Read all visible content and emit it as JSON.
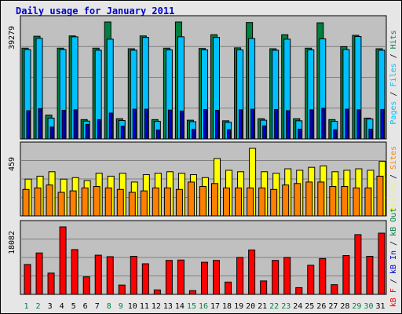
{
  "chart_data": {
    "title": "Daily usage for January 2011",
    "days": [
      "1",
      "2",
      "3",
      "4",
      "5",
      "6",
      "7",
      "8",
      "9",
      "10",
      "11",
      "12",
      "13",
      "14",
      "15",
      "16",
      "17",
      "18",
      "19",
      "20",
      "21",
      "22",
      "23",
      "24",
      "25",
      "26",
      "27",
      "28",
      "29",
      "30",
      "31"
    ],
    "weekend_days": [
      "1",
      "2",
      "8",
      "9",
      "15",
      "16",
      "22",
      "23",
      "29",
      "30"
    ],
    "colors": {
      "hits": "#008040",
      "files": "#00c0ff",
      "pages": "#00ffff",
      "pages_dark": "#0000cc",
      "visits": "#ffff00",
      "sites": "#ff8000",
      "kbytes": "#ff0000",
      "weekday_label": "#0000cc",
      "weekend_label": "#008040",
      "title": "#0000cc"
    },
    "charts": [
      {
        "type": "bar",
        "ymax_label": "39279",
        "ylim": [
          0,
          39279
        ],
        "legend_parts": [
          {
            "text": "Pages",
            "color": "#00c0ff"
          },
          {
            "text": " / ",
            "color": "#000000"
          },
          {
            "text": "Files",
            "color": "#00c0ff"
          },
          {
            "text": " / ",
            "color": "#000000"
          },
          {
            "text": "Hits",
            "color": "#008040"
          }
        ],
        "series": [
          {
            "name": "Hits",
            "values": [
              30500,
              34500,
              8000,
              30500,
              34600,
              6500,
              30500,
              39279,
              6800,
              30300,
              34600,
              6500,
              30500,
              39279,
              6300,
              30400,
              35000,
              6100,
              30600,
              39100,
              6800,
              30300,
              35000,
              6800,
              30500,
              39000,
              6500,
              31000,
              34800,
              7000,
              30300
            ]
          },
          {
            "name": "Files",
            "values": [
              30000,
              33800,
              7000,
              30000,
              34300,
              6000,
              29800,
              33500,
              6200,
              29800,
              34100,
              5900,
              29900,
              34300,
              5800,
              29900,
              34100,
              5600,
              29900,
              33700,
              6300,
              29800,
              33500,
              6100,
              29900,
              33600,
              5900,
              30000,
              34400,
              6700,
              29800
            ]
          },
          {
            "name": "Pages",
            "values": [
              9500,
              10200,
              4000,
              9600,
              9800,
              4900,
              6500,
              8700,
              4300,
              10000,
              10000,
              3000,
              9700,
              9400,
              3200,
              9900,
              9600,
              3100,
              9800,
              10000,
              4400,
              9900,
              9500,
              3300,
              9800,
              10300,
              3100,
              10000,
              9800,
              3300,
              9900
            ]
          }
        ]
      },
      {
        "type": "bar",
        "ymax_label": "459",
        "ylim": [
          0,
          459
        ],
        "legend_parts": [
          {
            "text": "Visits",
            "color": "#ffff00"
          },
          {
            "text": " / ",
            "color": "#000000"
          },
          {
            "text": "Sites",
            "color": "#ff8000"
          }
        ],
        "series": [
          {
            "name": "Visits",
            "values": [
              250,
              270,
              300,
              250,
              260,
              240,
              290,
              270,
              290,
              230,
              280,
              290,
              300,
              290,
              280,
              260,
              390,
              310,
              300,
              459,
              300,
              290,
              320,
              310,
              330,
              340,
              300,
              310,
              320,
              310,
              370
            ]
          },
          {
            "name": "Sites",
            "values": [
              180,
              190,
              210,
              160,
              170,
              190,
              200,
              190,
              180,
              160,
              170,
              190,
              190,
              180,
              230,
              200,
              220,
              190,
              190,
              190,
              190,
              180,
              210,
              220,
              230,
              230,
              200,
              200,
              190,
              190,
              270
            ]
          }
        ]
      },
      {
        "type": "bar",
        "ymax_label": "18082",
        "ylim": [
          0,
          18082
        ],
        "legend_parts": [
          {
            "text": "kB F",
            "color": "#ff0000"
          },
          {
            "text": " / ",
            "color": "#000000"
          },
          {
            "text": "kB In",
            "color": "#0000cc"
          },
          {
            "text": " / ",
            "color": "#000000"
          },
          {
            "text": "kB Out",
            "color": "#008040"
          }
        ],
        "series": [
          {
            "name": "kB F",
            "values": [
              8000,
              11100,
              5700,
              18082,
              12000,
              4700,
              10500,
              10100,
              2500,
              10200,
              8200,
              1200,
              9100,
              9200,
              1000,
              8600,
              9100,
              3300,
              9900,
              11900,
              3600,
              9100,
              9900,
              1800,
              7800,
              9600,
              2600,
              10400,
              16000,
              10200,
              16400
            ]
          }
        ]
      }
    ]
  }
}
